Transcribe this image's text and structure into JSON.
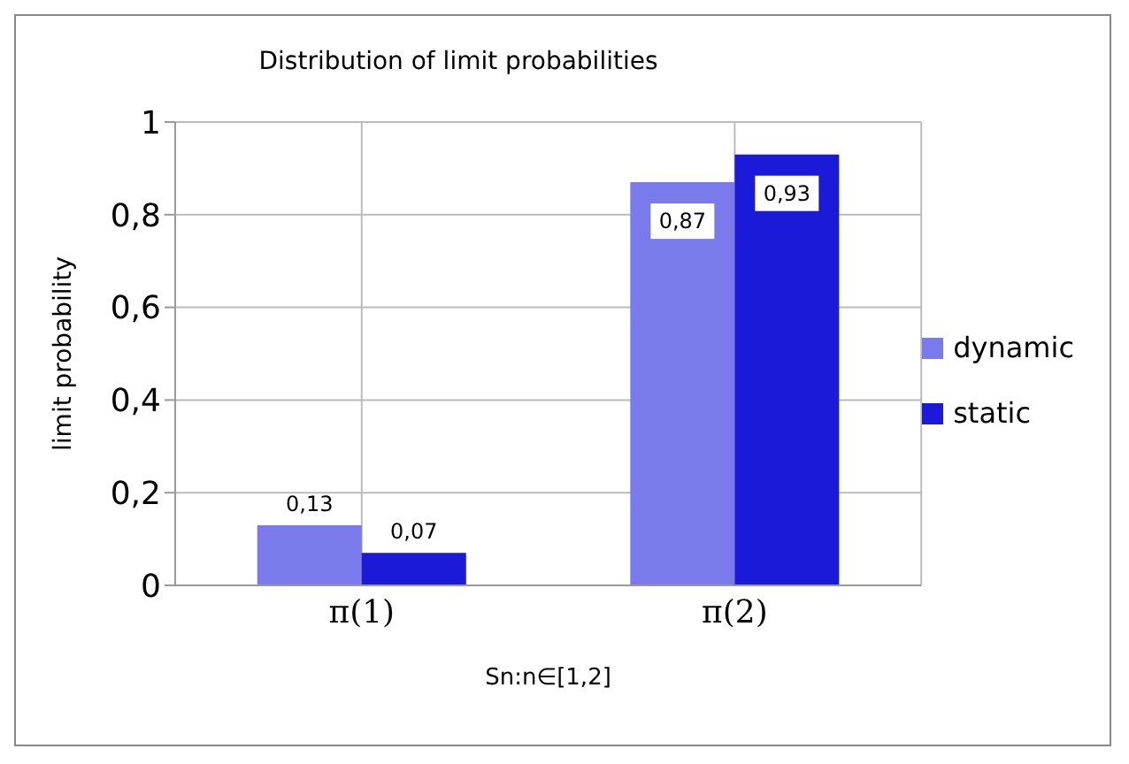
{
  "chart_data": {
    "type": "bar",
    "title": "Distribution of limit probabilities",
    "xlabel": "Sn:n∈[1,2]",
    "ylabel": "limit probability",
    "categories": [
      "π(1)",
      "π(2)"
    ],
    "series": [
      {
        "name": "dynamic",
        "color": "#7a7aec",
        "values": [
          0.13,
          0.87
        ],
        "value_labels": [
          "0,13",
          "0,87"
        ]
      },
      {
        "name": "static",
        "color": "#1a1ad8",
        "values": [
          0.07,
          0.93
        ],
        "value_labels": [
          "0,07",
          "0,93"
        ]
      }
    ],
    "ylim": [
      0,
      1
    ],
    "yticks": [
      0,
      {
        "value": 0.2,
        "label": "0,2"
      },
      {
        "value": 0.4,
        "label": "0,4"
      },
      {
        "value": 0.6,
        "label": "0,6"
      },
      {
        "value": 0.8,
        "label": "0,8"
      },
      1
    ],
    "grid": true,
    "legend": "right"
  }
}
